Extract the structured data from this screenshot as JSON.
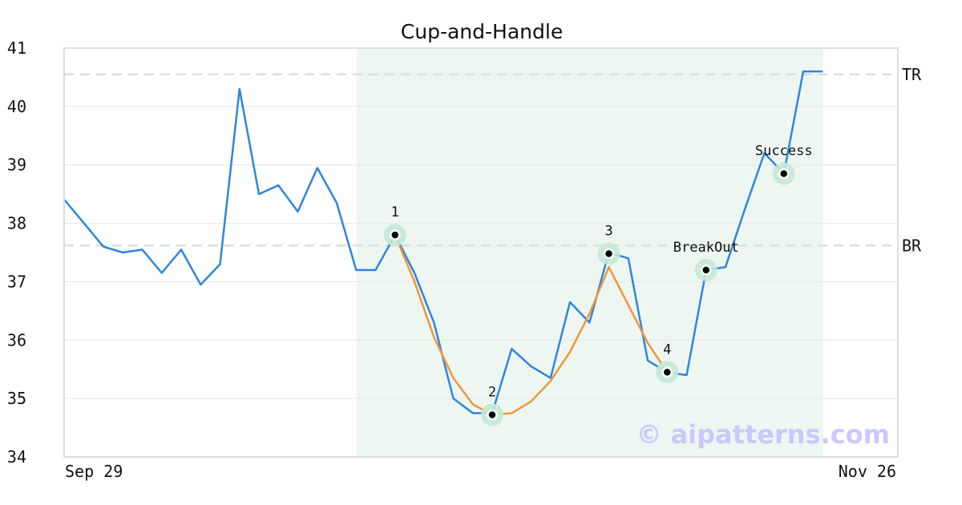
{
  "chart_data": {
    "type": "line",
    "title": "Cup-and-Handle",
    "xlabel": "",
    "ylabel": "",
    "ylim": [
      34,
      41
    ],
    "yticks": [
      34,
      35,
      36,
      37,
      38,
      39,
      40,
      41
    ],
    "grid": true,
    "x_tick_labels": [
      "Sep 29",
      "Nov 26"
    ],
    "series": [
      {
        "color": "#2e86de",
        "values": [
          38.4,
          38.0,
          37.6,
          37.5,
          37.55,
          37.15,
          37.55,
          36.95,
          37.3,
          40.3,
          38.5,
          38.65,
          38.2,
          38.95,
          38.35,
          37.2,
          37.2,
          37.8,
          37.15,
          36.3,
          35.0,
          34.75,
          34.75,
          35.85,
          35.55,
          35.35,
          36.65,
          36.3,
          37.5,
          37.4,
          35.65,
          35.45,
          35.4,
          37.2,
          37.25,
          38.25,
          39.2,
          38.85,
          40.6,
          40.6
        ]
      },
      {
        "color": "#f0963a",
        "start_index": 17,
        "values": [
          37.8,
          37.0,
          36.05,
          35.35,
          34.9,
          34.72,
          34.75,
          34.95,
          35.3,
          35.8,
          36.45,
          37.25,
          36.6,
          35.95,
          35.45
        ]
      }
    ],
    "reference_lines": [
      {
        "label": "TR",
        "value": 40.55
      },
      {
        "label": "BR",
        "value": 37.62
      }
    ],
    "highlight_range": [
      15,
      39
    ],
    "highlight_color": "#eef6f1",
    "points": [
      {
        "label": "1",
        "index": 17,
        "value": 37.8
      },
      {
        "label": "2",
        "index": 22,
        "value": 34.72
      },
      {
        "label": "3",
        "index": 28,
        "value": 37.48
      },
      {
        "label": "4",
        "index": 31,
        "value": 35.45
      },
      {
        "label": "BreakOut",
        "index": 33,
        "value": 37.2
      },
      {
        "label": "Success",
        "index": 37,
        "value": 38.85
      }
    ]
  },
  "watermark": "© aipatterns.com"
}
